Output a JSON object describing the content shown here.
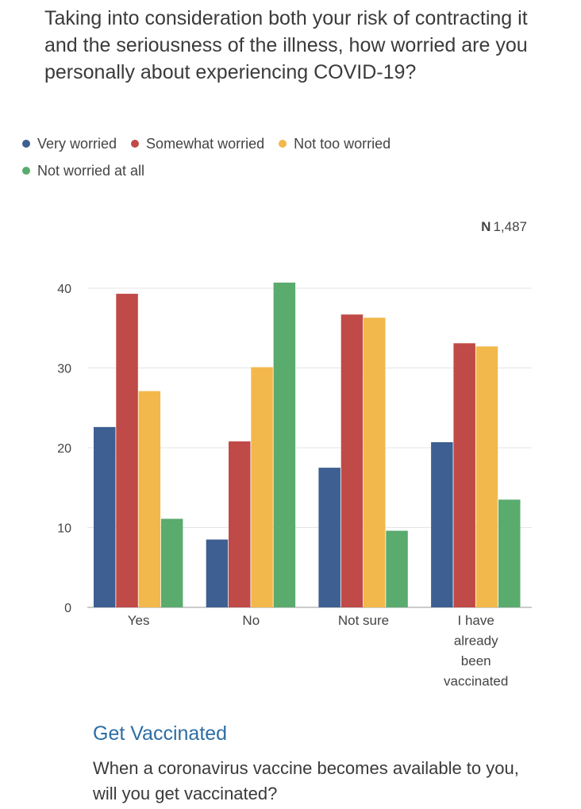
{
  "question": "Taking into consideration both your risk of contracting it and the seriousness of the illness, how worried are you personally about experiencing COVID-19?",
  "sample_size": {
    "label": "N",
    "value": "1,487"
  },
  "next_section": {
    "heading": "Get Vaccinated",
    "question": "When a coronavirus vaccine becomes available to you, will you get vaccinated?"
  },
  "chart_data": {
    "type": "bar",
    "title": "Taking into consideration both your risk of contracting it and the seriousness of the illness, how worried are you personally about experiencing COVID-19?",
    "categories": [
      [
        "Yes"
      ],
      [
        "No"
      ],
      [
        "Not sure"
      ],
      [
        "I have",
        "already",
        "been",
        "vaccinated"
      ]
    ],
    "series": [
      {
        "name": "Very worried",
        "color": "#3d5f91",
        "values": [
          22.6,
          8.5,
          17.5,
          20.7
        ]
      },
      {
        "name": "Somewhat worried",
        "color": "#c04a47",
        "values": [
          39.3,
          20.8,
          36.7,
          33.1
        ]
      },
      {
        "name": "Not too worried",
        "color": "#f2b84b",
        "values": [
          27.1,
          30.1,
          36.3,
          32.7
        ]
      },
      {
        "name": "Not worried at all",
        "color": "#5aab6e",
        "values": [
          11.1,
          40.7,
          9.6,
          13.5
        ]
      }
    ],
    "yticks": [
      "0",
      "10",
      "20",
      "30",
      "40"
    ],
    "ylim": [
      0,
      40
    ],
    "xlabel": "",
    "ylabel": "",
    "grid": true,
    "legend_placement": "top-left"
  }
}
